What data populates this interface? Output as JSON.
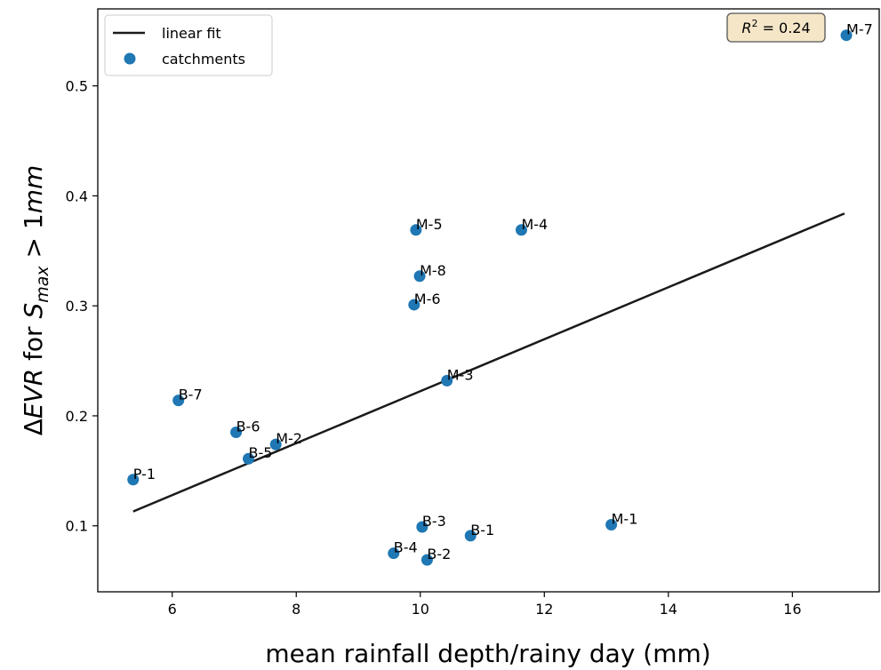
{
  "chart_data": {
    "type": "scatter",
    "xlabel": "mean rainfall depth/rainy day (mm)",
    "ylabel": "ΔEVR for S_max > 1mm",
    "ylabel_parts": {
      "pre": "Δ",
      "evr": "EVR",
      "mid": " for ",
      "s": "S",
      "sub": "max",
      "post": " > 1",
      "unit": "mm"
    },
    "xlim": [
      4.8,
      17.4
    ],
    "ylim": [
      0.04,
      0.57
    ],
    "xticks": [
      6,
      8,
      10,
      12,
      14,
      16
    ],
    "yticks": [
      0.1,
      0.2,
      0.3,
      0.4,
      0.5
    ],
    "xtick_labels": [
      "6",
      "8",
      "10",
      "12",
      "14",
      "16"
    ],
    "ytick_labels": [
      "0.1",
      "0.2",
      "0.3",
      "0.4",
      "0.5"
    ],
    "grid": false,
    "legend": {
      "placement": "top-left",
      "entries": [
        {
          "label": "linear fit",
          "kind": "line",
          "color": "#1a1a1a"
        },
        {
          "label": "catchments",
          "kind": "marker",
          "color": "#1f77b4"
        }
      ]
    },
    "annotation": {
      "text": "R² = 0.24",
      "r": "R",
      "sup": "2",
      "rest": " = 0.24",
      "placement": "top-right",
      "box_color": "#f5e6c8"
    },
    "fit_line": {
      "x": [
        5.37,
        16.84
      ],
      "y": [
        0.113,
        0.384
      ],
      "color": "#1a1a1a",
      "name": "linear fit"
    },
    "series": [
      {
        "name": "catchments",
        "color": "#1f77b4",
        "points": [
          {
            "label": "P-1",
            "x": 5.37,
            "y": 0.142
          },
          {
            "label": "B-7",
            "x": 6.1,
            "y": 0.214
          },
          {
            "label": "B-6",
            "x": 7.03,
            "y": 0.185
          },
          {
            "label": "B-5",
            "x": 7.23,
            "y": 0.161
          },
          {
            "label": "M-2",
            "x": 7.67,
            "y": 0.174
          },
          {
            "label": "B-4",
            "x": 9.57,
            "y": 0.075
          },
          {
            "label": "M-6",
            "x": 9.9,
            "y": 0.301
          },
          {
            "label": "M-5",
            "x": 9.93,
            "y": 0.369
          },
          {
            "label": "M-8",
            "x": 9.99,
            "y": 0.327
          },
          {
            "label": "B-3",
            "x": 10.03,
            "y": 0.099
          },
          {
            "label": "B-2",
            "x": 10.11,
            "y": 0.069
          },
          {
            "label": "M-3",
            "x": 10.43,
            "y": 0.232
          },
          {
            "label": "B-1",
            "x": 10.81,
            "y": 0.091
          },
          {
            "label": "M-4",
            "x": 11.63,
            "y": 0.369
          },
          {
            "label": "M-1",
            "x": 13.08,
            "y": 0.101
          },
          {
            "label": "M-7",
            "x": 16.87,
            "y": 0.546
          }
        ]
      }
    ]
  }
}
